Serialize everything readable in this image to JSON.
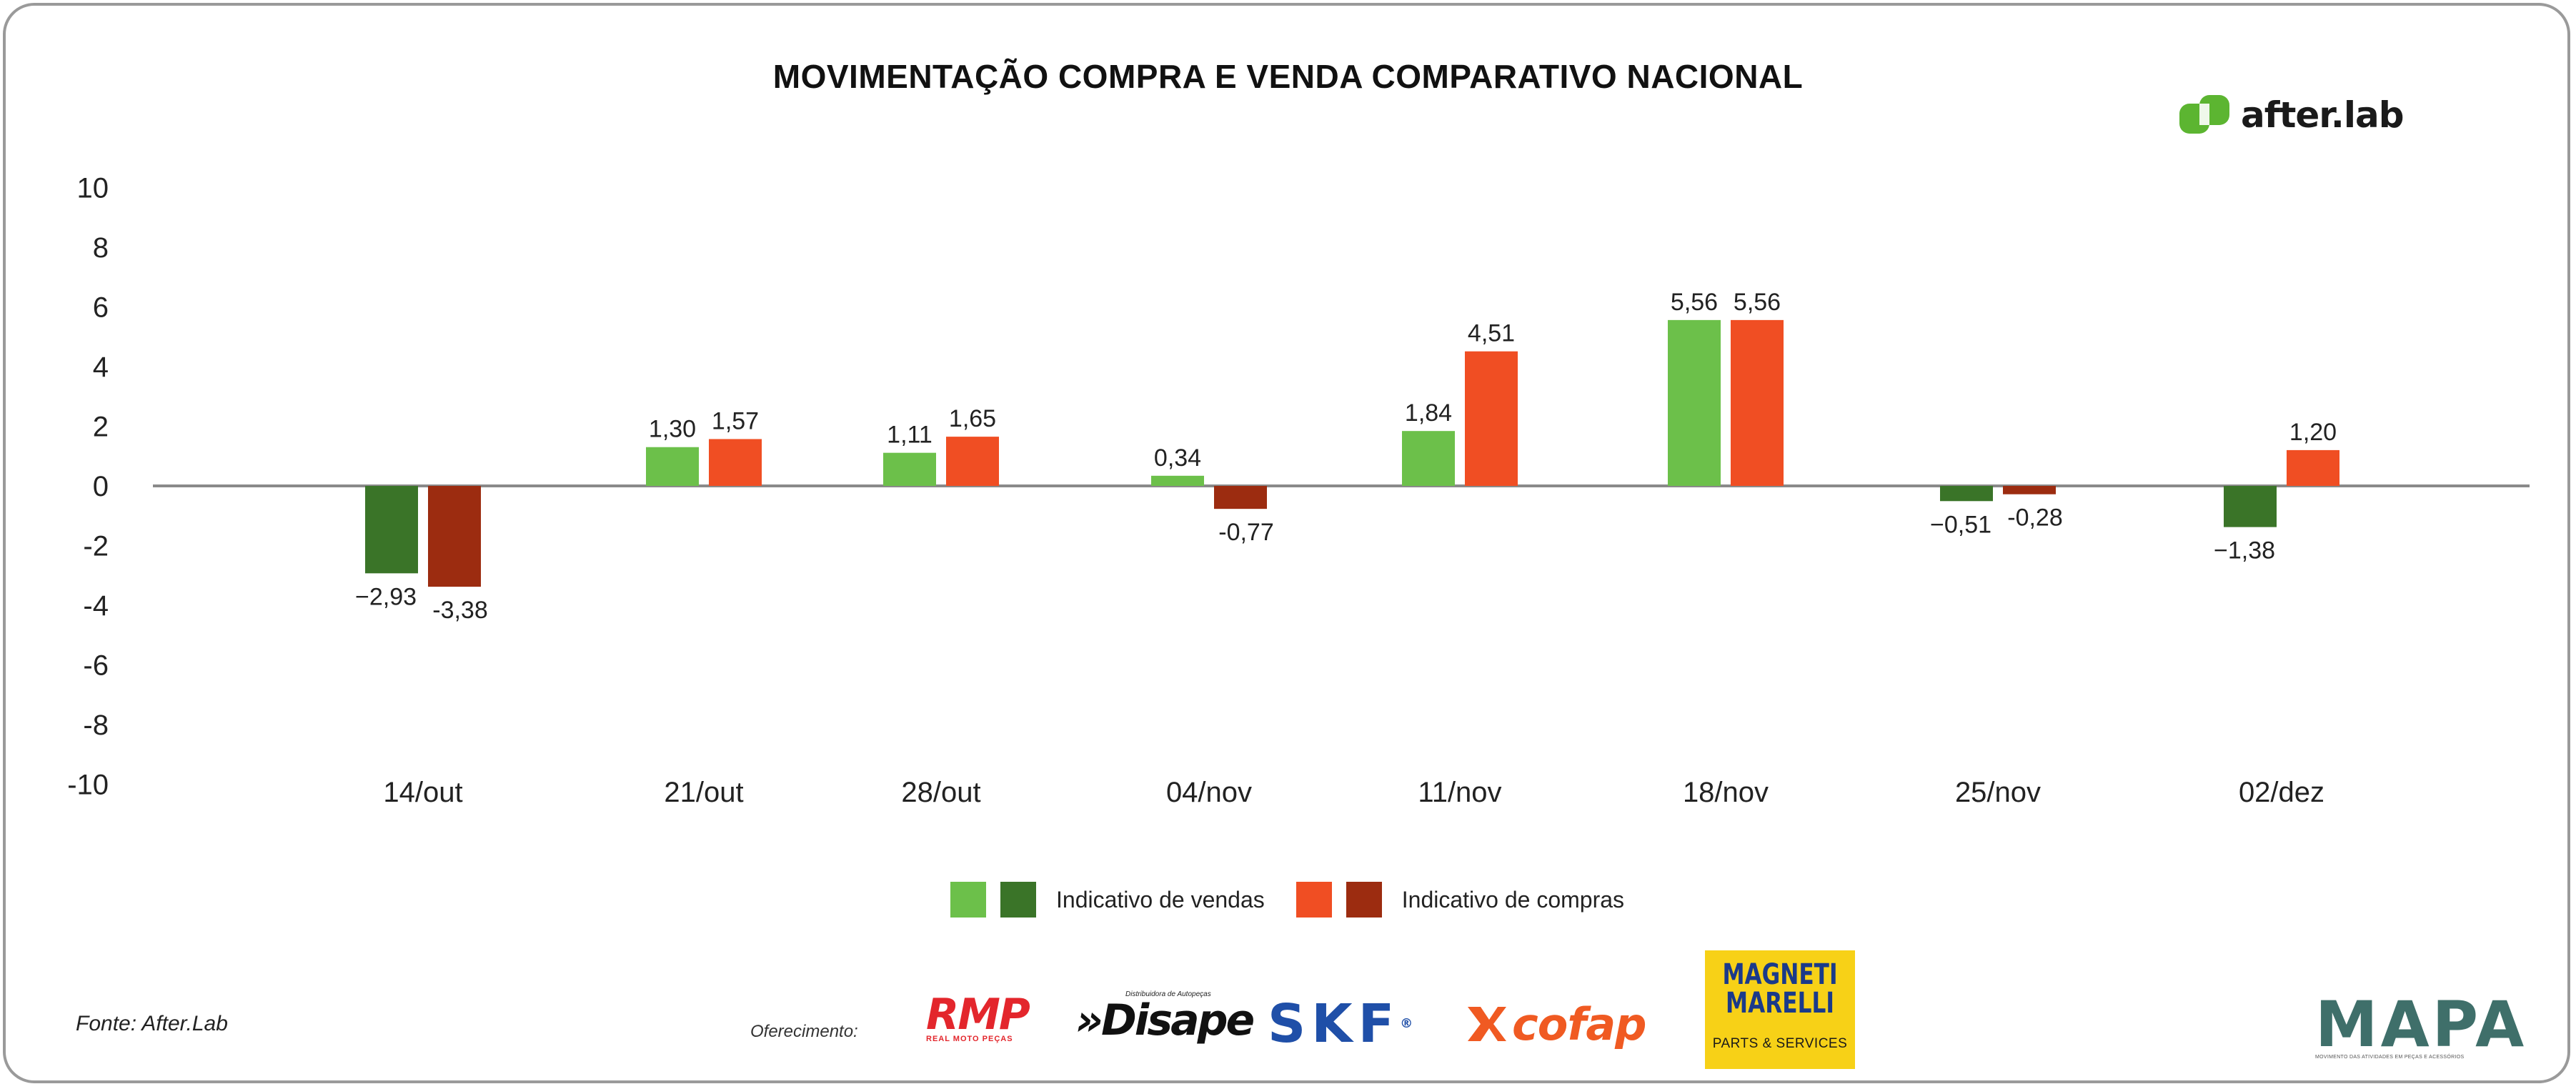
{
  "title": "MOVIMENTAÇÃO COMPRA E VENDA COMPARATIVO NACIONAL",
  "brand": {
    "name": "after.lab",
    "color": "#5cb531"
  },
  "chart_data": {
    "type": "bar",
    "title": "MOVIMENTAÇÃO COMPRA E VENDA COMPARATIVO NACIONAL",
    "xlabel": "",
    "ylabel": "",
    "ylim": [
      -10,
      10
    ],
    "yticks": [
      "10",
      "8",
      "6",
      "4",
      "2",
      "0",
      "-2",
      "-4",
      "-6",
      "-8",
      "-10"
    ],
    "grid": false,
    "categories": [
      "14/out",
      "21/out",
      "28/out",
      "04/nov",
      "11/nov",
      "18/nov",
      "25/nov",
      "02/dez"
    ],
    "series": [
      {
        "name": "Indicativo de vendas",
        "values": [
          -2.93,
          1.3,
          1.11,
          0.34,
          1.84,
          5.56,
          -0.51,
          -1.38
        ],
        "labels": [
          "−2,93",
          "1,30",
          "1,11",
          "0,34",
          "1,84",
          "5,56",
          "−0,51",
          "−1,38"
        ],
        "color_positive": "#6cc04a",
        "color_negative": "#3a7428"
      },
      {
        "name": "Indicativo de compras",
        "values": [
          -3.38,
          1.57,
          1.65,
          -0.77,
          4.51,
          5.56,
          -0.28,
          1.2
        ],
        "labels": [
          "-3,38",
          "1,57",
          "1,65",
          "-0,77",
          "4,51",
          "5,56",
          "-0,28",
          "1,20"
        ],
        "color_positive": "#f04e23",
        "color_negative": "#9c2c10"
      }
    ],
    "legend": "bottom-center"
  },
  "legend": {
    "vendas_label": "Indicativo de vendas",
    "compras_label": "Indicativo de compras"
  },
  "footer": {
    "fonte": "Fonte: After.Lab",
    "oferecimento": "Oferecimento:"
  },
  "sponsors": {
    "rmp": {
      "name": "RMP",
      "tagline": "REAL MOTO PEÇAS",
      "color": "#e3262c"
    },
    "disape": {
      "name": "»Disape",
      "tagline": "Distribuidora de Autopeças",
      "color": "#111111"
    },
    "skf": {
      "name": "SKF",
      "mark": "®",
      "color": "#1f4fa8"
    },
    "cofap": {
      "name": "cofap",
      "color": "#f05a22"
    },
    "magneti": {
      "name_line1": "MAGNETI",
      "name_line2": "MARELLI",
      "tagline": "PARTS & SERVICES",
      "color": "#f7d117"
    },
    "mapa": {
      "name": "MAPA",
      "tagline": "MOVIMENTO DAS ATIVIDADES EM PEÇAS E ACESSÓRIOS"
    }
  }
}
